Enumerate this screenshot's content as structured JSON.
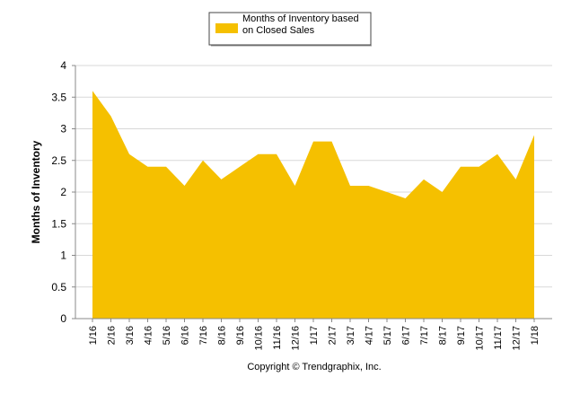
{
  "chart_data": {
    "type": "area",
    "legend_label": "Months of Inventory based on Closed Sales",
    "y_axis_label": "Months of Inventory",
    "footer": "Copyright © Trendgraphix, Inc.",
    "categories": [
      "1/16",
      "2/16",
      "3/16",
      "4/16",
      "5/16",
      "6/16",
      "7/16",
      "8/16",
      "9/16",
      "10/16",
      "11/16",
      "12/16",
      "1/17",
      "2/17",
      "3/17",
      "4/17",
      "5/17",
      "6/17",
      "7/17",
      "8/17",
      "9/17",
      "10/17",
      "11/17",
      "12/17",
      "1/18"
    ],
    "values": [
      3.6,
      3.2,
      2.6,
      2.4,
      2.4,
      2.1,
      2.5,
      2.2,
      2.4,
      2.6,
      2.6,
      2.1,
      2.8,
      2.8,
      2.1,
      2.1,
      2.0,
      1.9,
      2.2,
      2.0,
      2.4,
      2.4,
      2.6,
      2.2,
      2.9
    ],
    "color": "#f5c000",
    "ylim": [
      0,
      4
    ],
    "yticks": [
      0,
      0.5,
      1,
      1.5,
      2,
      2.5,
      3,
      3.5,
      4
    ],
    "grid": true
  }
}
